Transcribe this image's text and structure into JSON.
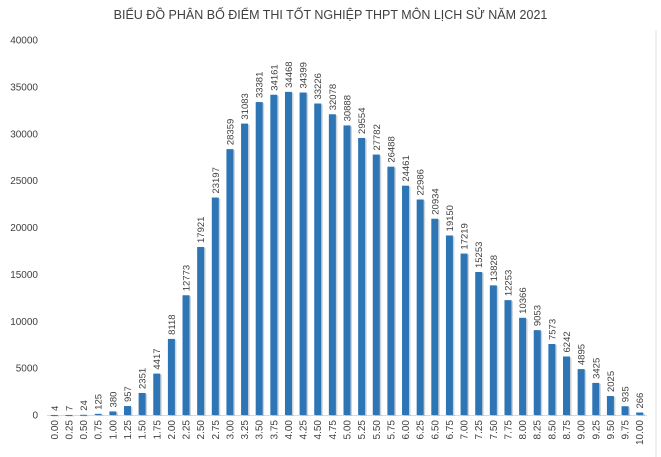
{
  "chart_data": {
    "type": "bar",
    "title": "BIỂU ĐỒ PHÂN BỐ ĐIỂM THI TỐT NGHIỆP THPT MÔN LỊCH SỬ NĂM 2021",
    "xlabel": "",
    "ylabel": "",
    "ylim": [
      0,
      40000
    ],
    "yticks": [
      0,
      5000,
      10000,
      15000,
      20000,
      25000,
      30000,
      35000,
      40000
    ],
    "grid": false,
    "bar_color": "#2E75B6",
    "categories": [
      "0.00",
      "0.25",
      "0.50",
      "0.75",
      "1.00",
      "1.25",
      "1.50",
      "1.75",
      "2.00",
      "2.25",
      "2.50",
      "2.75",
      "3.00",
      "3.25",
      "3.50",
      "3.75",
      "4.00",
      "4.25",
      "4.50",
      "4.75",
      "5.00",
      "5.25",
      "5.50",
      "5.75",
      "6.00",
      "6.25",
      "6.50",
      "6.75",
      "7.00",
      "7.25",
      "7.50",
      "7.75",
      "8.00",
      "8.25",
      "8.50",
      "8.75",
      "9.00",
      "9.25",
      "9.50",
      "9.75",
      "10.00"
    ],
    "values": [
      4,
      7,
      24,
      125,
      380,
      957,
      2351,
      4417,
      8118,
      12773,
      17921,
      23197,
      28359,
      31083,
      33381,
      34161,
      34468,
      34399,
      33226,
      32078,
      30888,
      29554,
      27782,
      26488,
      24461,
      22986,
      20934,
      19150,
      17219,
      15253,
      13828,
      12253,
      10366,
      9053,
      7573,
      6242,
      4895,
      3425,
      2025,
      935,
      266
    ]
  }
}
